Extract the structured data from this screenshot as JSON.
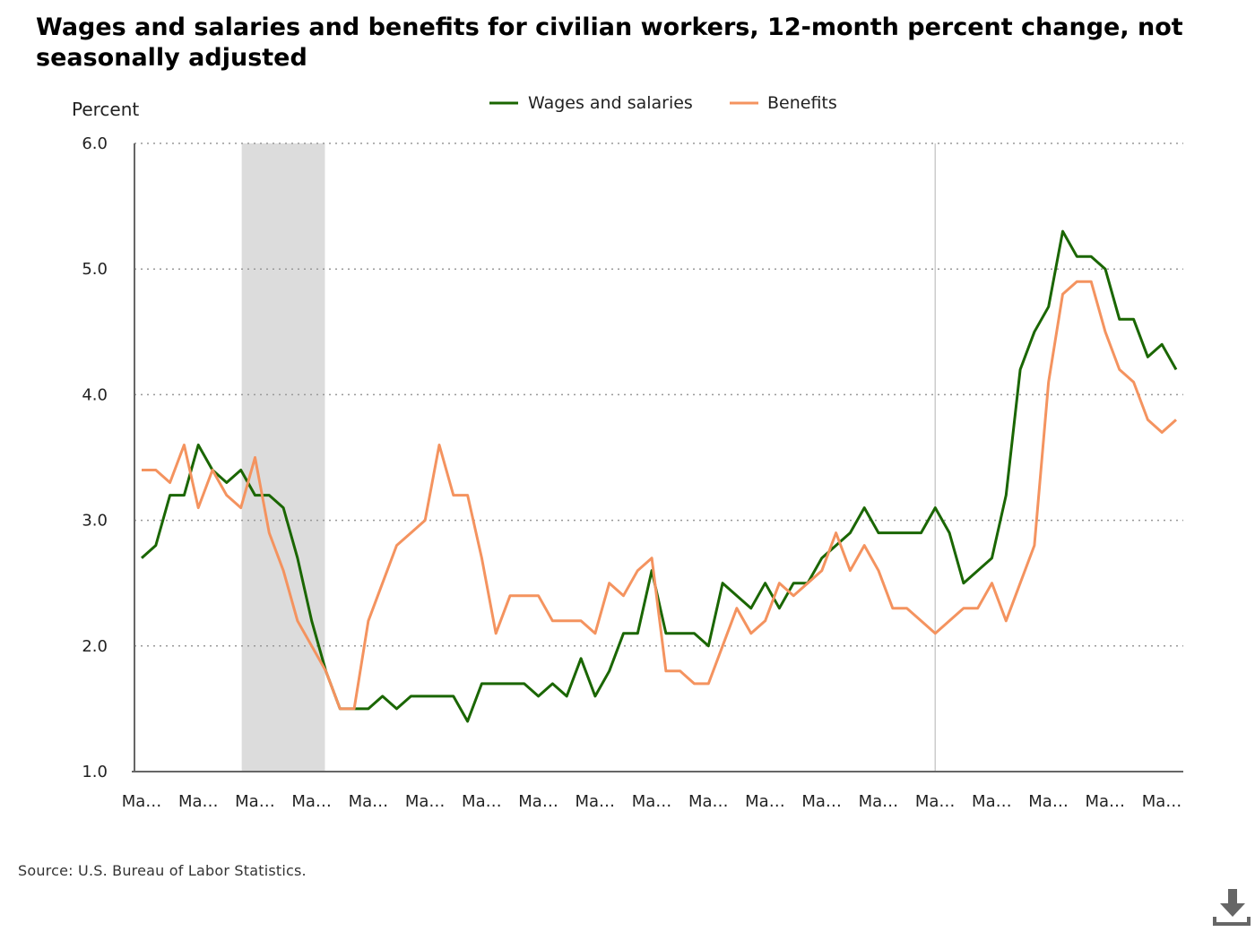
{
  "chart_data": {
    "type": "line",
    "title": "Wages and salaries and benefits for civilian workers, 12-month percent change, not seasonally adjusted",
    "ylabel": "Percent",
    "xlabel": "",
    "ylim": [
      1.0,
      6.0
    ],
    "y_ticks": [
      "6.0",
      "5.0",
      "4.0",
      "3.0",
      "2.0",
      "1.0"
    ],
    "x_tick_labels": [
      "Ma…",
      "Ma…",
      "Ma…",
      "Ma…",
      "Ma…",
      "Ma…",
      "Ma…",
      "Ma…",
      "Ma…",
      "Ma…",
      "Ma…",
      "Ma…",
      "Ma…",
      "Ma…",
      "Ma…",
      "Ma…",
      "Ma…",
      "Ma…",
      "Ma…"
    ],
    "grid": "horizontal dotted",
    "legend_position": "top-center",
    "series": [
      {
        "name": "Wages and salaries",
        "color": "#1a6600",
        "values": [
          2.7,
          2.8,
          3.2,
          3.2,
          3.6,
          3.4,
          3.3,
          3.4,
          3.2,
          3.2,
          3.1,
          2.7,
          2.2,
          1.8,
          1.5,
          1.5,
          1.5,
          1.6,
          1.5,
          1.6,
          1.6,
          1.6,
          1.6,
          1.4,
          1.7,
          1.7,
          1.7,
          1.7,
          1.6,
          1.7,
          1.6,
          1.9,
          1.6,
          1.8,
          2.1,
          2.1,
          2.6,
          2.1,
          2.1,
          2.1,
          2.0,
          2.5,
          2.4,
          2.3,
          2.5,
          2.3,
          2.5,
          2.5,
          2.7,
          2.8,
          2.9,
          3.1,
          2.9,
          2.9,
          2.9,
          2.9,
          3.1,
          2.9,
          2.5,
          2.6,
          2.7,
          3.2,
          4.2,
          4.5,
          4.7,
          5.3,
          5.1,
          5.1,
          5.0,
          4.6,
          4.6,
          4.3,
          4.4,
          4.2
        ]
      },
      {
        "name": "Benefits",
        "color": "#f4935f",
        "values": [
          3.4,
          3.4,
          3.3,
          3.6,
          3.1,
          3.4,
          3.2,
          3.1,
          3.5,
          2.9,
          2.6,
          2.2,
          2.0,
          1.8,
          1.5,
          1.5,
          2.2,
          2.5,
          2.8,
          2.9,
          3.0,
          3.6,
          3.2,
          3.2,
          2.7,
          2.1,
          2.4,
          2.4,
          2.4,
          2.2,
          2.2,
          2.2,
          2.1,
          2.5,
          2.4,
          2.6,
          2.7,
          1.8,
          1.8,
          1.7,
          1.7,
          2.0,
          2.3,
          2.1,
          2.2,
          2.5,
          2.4,
          2.5,
          2.6,
          2.9,
          2.6,
          2.8,
          2.6,
          2.3,
          2.3,
          2.2,
          2.1,
          2.2,
          2.3,
          2.3,
          2.5,
          2.2,
          2.5,
          2.8,
          4.1,
          4.8,
          4.9,
          4.9,
          4.5,
          4.2,
          4.1,
          3.8,
          3.7,
          3.8
        ]
      }
    ],
    "shaded_region": {
      "start_index": 7,
      "end_index": 13,
      "color": "#dcdcdc"
    },
    "reference_line_index": 56,
    "reference_line_color": "#cccccc",
    "line_color_axis": "#666666",
    "gridline_color": "#999999"
  },
  "source": "Source: U.S. Bureau of Labor Statistics.",
  "download_icon": "download-icon"
}
